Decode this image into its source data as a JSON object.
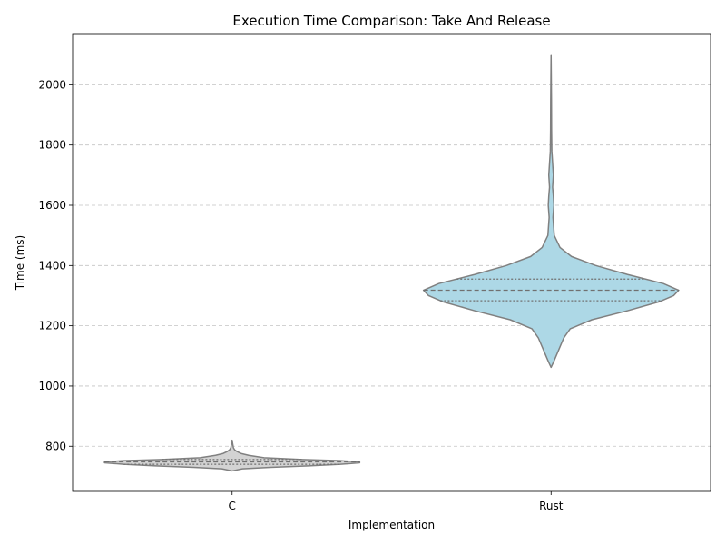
{
  "chart_data": {
    "type": "violin",
    "title": "Execution Time Comparison: Take And Release",
    "xlabel": "Implementation",
    "ylabel": "Time (ms)",
    "categories": [
      "C",
      "Rust"
    ],
    "ylim": [
      650,
      2170
    ],
    "yticks": [
      800,
      1000,
      1200,
      1400,
      1600,
      1800,
      2000
    ],
    "grid": "y-dashed",
    "series": [
      {
        "name": "C",
        "color": "#d3d3d3",
        "min": 718,
        "q1": 740,
        "median": 748,
        "q3": 756,
        "max": 820,
        "density": [
          [
            718,
            0.0
          ],
          [
            725,
            0.08
          ],
          [
            730,
            0.3
          ],
          [
            735,
            0.6
          ],
          [
            740,
            0.85
          ],
          [
            745,
            1.0
          ],
          [
            748,
            1.0
          ],
          [
            752,
            0.85
          ],
          [
            756,
            0.55
          ],
          [
            762,
            0.25
          ],
          [
            770,
            0.13
          ],
          [
            776,
            0.07
          ],
          [
            782,
            0.04
          ],
          [
            788,
            0.02
          ],
          [
            795,
            0.01
          ],
          [
            820,
            0.0
          ]
        ]
      },
      {
        "name": "Rust",
        "color": "#add8e6",
        "min": 1062,
        "q1": 1283,
        "median": 1318,
        "q3": 1355,
        "max": 2097,
        "density": [
          [
            1062,
            0.0
          ],
          [
            1080,
            0.02
          ],
          [
            1100,
            0.04
          ],
          [
            1130,
            0.07
          ],
          [
            1160,
            0.1
          ],
          [
            1190,
            0.15
          ],
          [
            1220,
            0.32
          ],
          [
            1250,
            0.6
          ],
          [
            1280,
            0.85
          ],
          [
            1300,
            0.96
          ],
          [
            1318,
            1.0
          ],
          [
            1340,
            0.88
          ],
          [
            1370,
            0.6
          ],
          [
            1400,
            0.35
          ],
          [
            1430,
            0.16
          ],
          [
            1460,
            0.07
          ],
          [
            1500,
            0.025
          ],
          [
            1560,
            0.015
          ],
          [
            1600,
            0.022
          ],
          [
            1630,
            0.018
          ],
          [
            1660,
            0.012
          ],
          [
            1700,
            0.018
          ],
          [
            1740,
            0.012
          ],
          [
            1780,
            0.006
          ],
          [
            1850,
            0.004
          ],
          [
            1950,
            0.003
          ],
          [
            2097,
            0.0
          ]
        ]
      }
    ]
  }
}
